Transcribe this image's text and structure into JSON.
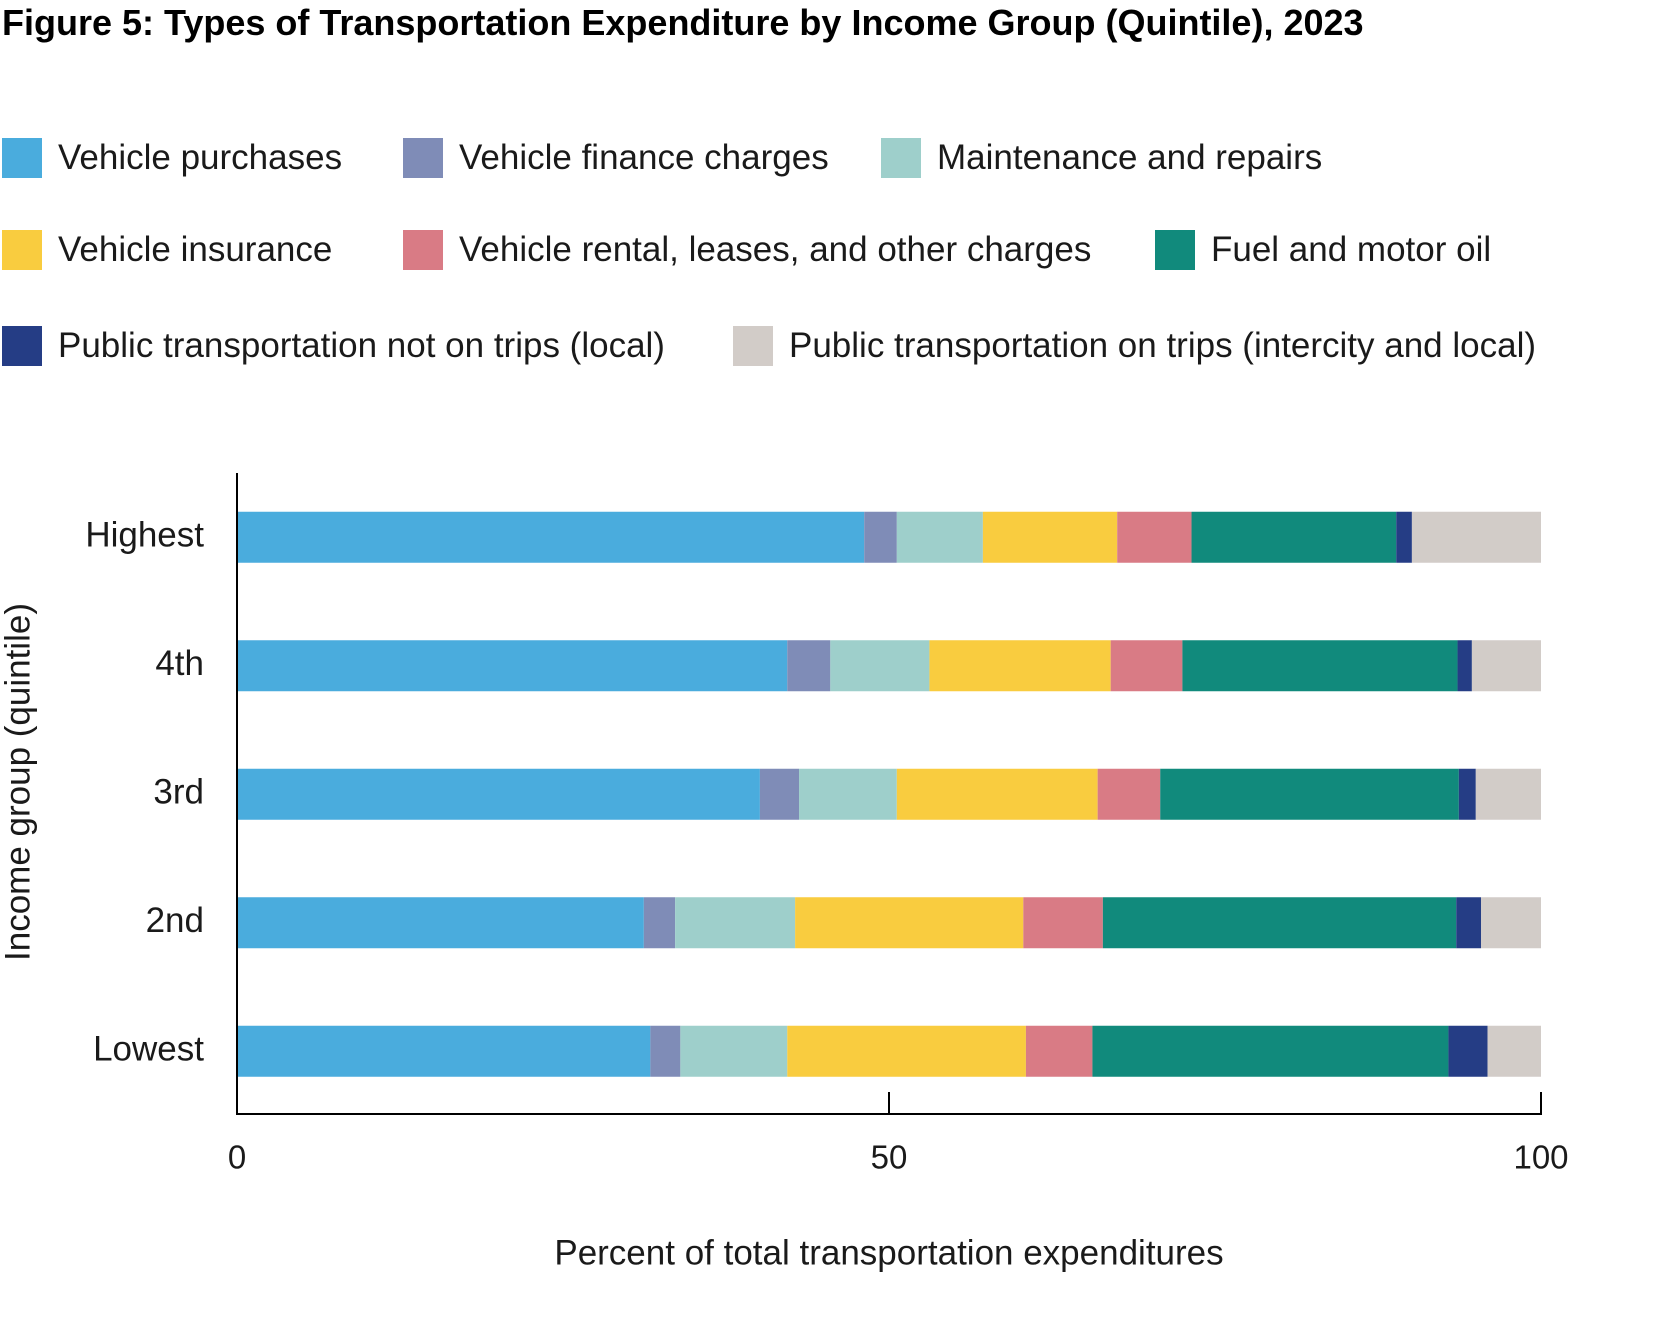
{
  "chart_data": {
    "type": "bar",
    "orientation": "horizontal",
    "stacked": true,
    "title": "Figure 5: Types of Transportation Expenditure by Income Group (Quintile), 2023",
    "xlabel": "Percent of total transportation expenditures",
    "ylabel": "Income group (quintile)",
    "xlim": [
      0,
      100
    ],
    "xticks": [
      0,
      50,
      100
    ],
    "grid": false,
    "legend_position": "top",
    "categories": [
      "Highest",
      "4th",
      "3rd",
      "2nd",
      "Lowest"
    ],
    "series": [
      {
        "name": "Vehicle purchases",
        "color": "#4AACDD",
        "values": [
          48.1,
          42.2,
          40.1,
          31.2,
          31.7
        ]
      },
      {
        "name": "Vehicle finance charges",
        "color": "#7F8CB7",
        "values": [
          2.5,
          3.3,
          3.0,
          2.4,
          2.3
        ]
      },
      {
        "name": "Maintenance and repairs",
        "color": "#9ECFCB",
        "values": [
          6.6,
          7.6,
          7.5,
          9.2,
          8.2
        ]
      },
      {
        "name": "Vehicle insurance",
        "color": "#F9CC3F",
        "values": [
          10.3,
          13.9,
          15.4,
          17.5,
          18.3
        ]
      },
      {
        "name": "Vehicle rental, leases, and other charges",
        "color": "#D97B85",
        "values": [
          5.7,
          5.5,
          4.8,
          6.1,
          5.1
        ]
      },
      {
        "name": "Fuel and motor oil",
        "color": "#118A7C",
        "values": [
          15.7,
          21.1,
          22.9,
          27.1,
          27.3
        ]
      },
      {
        "name": "Public transportation not on trips (local)",
        "color": "#253D85",
        "values": [
          1.2,
          1.1,
          1.3,
          1.9,
          3.0
        ]
      },
      {
        "name": "Public transportation on trips (intercity and local)",
        "color": "#D2CCC8",
        "values": [
          9.9,
          5.3,
          5.0,
          4.6,
          4.1
        ]
      }
    ]
  }
}
